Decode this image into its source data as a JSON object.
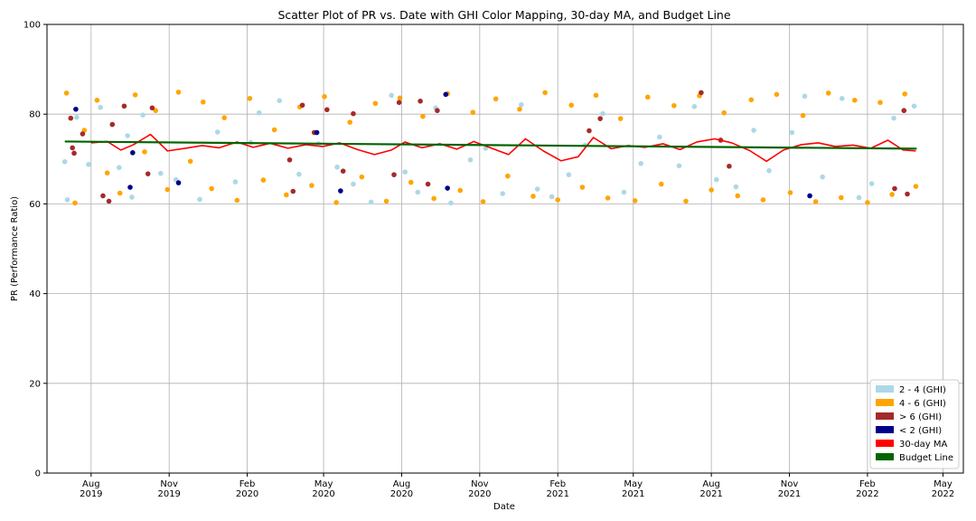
{
  "chart_data": {
    "type": "scatter",
    "title": "Scatter Plot of PR vs. Date with GHI Color Mapping, 30-day MA, and Budget Line",
    "xlabel": "Date",
    "ylabel": "PR (Performance Ratio)",
    "xlim": [
      "2019-06-10",
      "2022-05-25"
    ],
    "ylim": [
      0,
      100
    ],
    "yticks": [
      0,
      20,
      40,
      60,
      80,
      100
    ],
    "xticks": [
      {
        "date": "2019-08-01",
        "label1": "Aug",
        "label2": "2019"
      },
      {
        "date": "2019-11-01",
        "label1": "Nov",
        "label2": "2019"
      },
      {
        "date": "2020-02-01",
        "label1": "Feb",
        "label2": "2020"
      },
      {
        "date": "2020-05-01",
        "label1": "May",
        "label2": "2020"
      },
      {
        "date": "2020-08-01",
        "label1": "Aug",
        "label2": "2020"
      },
      {
        "date": "2020-11-01",
        "label1": "Nov",
        "label2": "2020"
      },
      {
        "date": "2021-02-01",
        "label1": "Feb",
        "label2": "2021"
      },
      {
        "date": "2021-05-01",
        "label1": "May",
        "label2": "2021"
      },
      {
        "date": "2021-08-01",
        "label1": "Aug",
        "label2": "2021"
      },
      {
        "date": "2021-11-01",
        "label1": "Nov",
        "label2": "2021"
      },
      {
        "date": "2022-02-01",
        "label1": "Feb",
        "label2": "2022"
      },
      {
        "date": "2022-05-01",
        "label1": "May",
        "label2": "2022"
      }
    ],
    "grid": true,
    "legend_position": "bottom-right",
    "series": [
      {
        "name": "2 - 4 (GHI)",
        "color": "#add8e6",
        "kind": "scatter",
        "points": [
          [
            "2019-07-01",
            69.4
          ],
          [
            "2019-07-04",
            60.9
          ],
          [
            "2019-07-15",
            79.3
          ],
          [
            "2019-07-29",
            68.8
          ],
          [
            "2019-08-12",
            81.5
          ],
          [
            "2019-09-03",
            68.1
          ],
          [
            "2019-09-13",
            75.2
          ],
          [
            "2019-09-18",
            61.5
          ],
          [
            "2019-10-01",
            79.8
          ],
          [
            "2019-10-22",
            66.8
          ],
          [
            "2019-11-09",
            65.4
          ],
          [
            "2019-12-07",
            61.0
          ],
          [
            "2019-12-28",
            76.0
          ],
          [
            "2020-01-18",
            64.9
          ],
          [
            "2020-02-05",
            73.7
          ],
          [
            "2020-02-15",
            80.3
          ],
          [
            "2020-03-10",
            83.0
          ],
          [
            "2020-04-02",
            66.6
          ],
          [
            "2020-04-25",
            73.4
          ],
          [
            "2020-05-17",
            68.2
          ],
          [
            "2020-06-05",
            64.4
          ],
          [
            "2020-06-26",
            60.4
          ],
          [
            "2020-07-20",
            84.2
          ],
          [
            "2020-08-05",
            67.1
          ],
          [
            "2020-08-20",
            62.6
          ],
          [
            "2020-09-10",
            81.4
          ],
          [
            "2020-09-28",
            60.2
          ],
          [
            "2020-10-21",
            69.8
          ],
          [
            "2020-11-08",
            72.4
          ],
          [
            "2020-11-28",
            62.3
          ],
          [
            "2020-12-20",
            82.1
          ],
          [
            "2021-01-08",
            63.3
          ],
          [
            "2021-01-25",
            61.6
          ],
          [
            "2021-02-14",
            66.5
          ],
          [
            "2021-03-05",
            73.1
          ],
          [
            "2021-03-26",
            80.1
          ],
          [
            "2021-04-20",
            62.6
          ],
          [
            "2021-05-10",
            69.0
          ],
          [
            "2021-06-01",
            74.9
          ],
          [
            "2021-06-24",
            68.5
          ],
          [
            "2021-07-12",
            81.7
          ],
          [
            "2021-08-07",
            65.4
          ],
          [
            "2021-08-30",
            63.8
          ],
          [
            "2021-09-20",
            76.4
          ],
          [
            "2021-10-08",
            67.4
          ],
          [
            "2021-11-04",
            75.9
          ],
          [
            "2021-11-19",
            84.0
          ],
          [
            "2021-12-10",
            66.0
          ],
          [
            "2022-01-02",
            83.5
          ],
          [
            "2022-01-22",
            61.4
          ],
          [
            "2022-02-06",
            64.5
          ],
          [
            "2022-03-04",
            79.1
          ],
          [
            "2022-03-28",
            81.8
          ]
        ]
      },
      {
        "name": "4 - 6 (GHI)",
        "color": "#ffa500",
        "kind": "scatter",
        "points": [
          [
            "2019-07-03",
            84.7
          ],
          [
            "2019-07-13",
            60.2
          ],
          [
            "2019-07-24",
            76.4
          ],
          [
            "2019-08-08",
            83.1
          ],
          [
            "2019-08-20",
            66.9
          ],
          [
            "2019-09-04",
            62.4
          ],
          [
            "2019-09-22",
            84.3
          ],
          [
            "2019-10-03",
            71.6
          ],
          [
            "2019-10-16",
            80.8
          ],
          [
            "2019-10-30",
            63.2
          ],
          [
            "2019-11-12",
            84.9
          ],
          [
            "2019-11-26",
            69.5
          ],
          [
            "2019-12-11",
            82.7
          ],
          [
            "2019-12-21",
            63.4
          ],
          [
            "2020-01-05",
            79.2
          ],
          [
            "2020-01-20",
            60.8
          ],
          [
            "2020-02-04",
            83.5
          ],
          [
            "2020-02-20",
            65.3
          ],
          [
            "2020-03-04",
            76.5
          ],
          [
            "2020-03-18",
            62.0
          ],
          [
            "2020-04-03",
            81.6
          ],
          [
            "2020-04-17",
            64.1
          ],
          [
            "2020-05-02",
            83.9
          ],
          [
            "2020-05-16",
            60.3
          ],
          [
            "2020-06-01",
            78.2
          ],
          [
            "2020-06-15",
            66.0
          ],
          [
            "2020-07-01",
            82.4
          ],
          [
            "2020-07-14",
            60.6
          ],
          [
            "2020-07-30",
            83.6
          ],
          [
            "2020-08-12",
            64.8
          ],
          [
            "2020-08-26",
            79.5
          ],
          [
            "2020-09-08",
            61.2
          ],
          [
            "2020-09-24",
            84.6
          ],
          [
            "2020-10-09",
            63.0
          ],
          [
            "2020-10-24",
            80.4
          ],
          [
            "2020-11-05",
            60.5
          ],
          [
            "2020-11-20",
            83.4
          ],
          [
            "2020-12-04",
            66.2
          ],
          [
            "2020-12-18",
            81.1
          ],
          [
            "2021-01-03",
            61.7
          ],
          [
            "2021-01-17",
            84.8
          ],
          [
            "2021-02-01",
            60.9
          ],
          [
            "2021-02-17",
            82.0
          ],
          [
            "2021-03-02",
            63.7
          ],
          [
            "2021-03-18",
            84.2
          ],
          [
            "2021-04-01",
            61.3
          ],
          [
            "2021-04-16",
            79.0
          ],
          [
            "2021-05-03",
            60.7
          ],
          [
            "2021-05-18",
            83.8
          ],
          [
            "2021-06-03",
            64.4
          ],
          [
            "2021-06-18",
            81.9
          ],
          [
            "2021-07-02",
            60.6
          ],
          [
            "2021-07-18",
            84.1
          ],
          [
            "2021-08-01",
            63.1
          ],
          [
            "2021-08-16",
            80.3
          ],
          [
            "2021-09-01",
            61.8
          ],
          [
            "2021-09-17",
            83.2
          ],
          [
            "2021-10-01",
            60.9
          ],
          [
            "2021-10-17",
            84.4
          ],
          [
            "2021-11-02",
            62.5
          ],
          [
            "2021-11-17",
            79.7
          ],
          [
            "2021-12-02",
            60.5
          ],
          [
            "2021-12-17",
            84.7
          ],
          [
            "2022-01-01",
            61.4
          ],
          [
            "2022-01-17",
            83.1
          ],
          [
            "2022-02-01",
            60.3
          ],
          [
            "2022-02-16",
            82.6
          ],
          [
            "2022-03-02",
            62.1
          ],
          [
            "2022-03-17",
            84.5
          ],
          [
            "2022-03-30",
            63.9
          ]
        ]
      },
      {
        "name": "> 6 (GHI)",
        "color": "#a52a2a",
        "kind": "scatter",
        "points": [
          [
            "2019-07-08",
            79.1
          ],
          [
            "2019-07-10",
            72.5
          ],
          [
            "2019-07-12",
            71.3
          ],
          [
            "2019-07-22",
            75.6
          ],
          [
            "2019-08-15",
            61.8
          ],
          [
            "2019-08-22",
            60.6
          ],
          [
            "2019-08-26",
            77.7
          ],
          [
            "2019-09-09",
            81.8
          ],
          [
            "2019-10-07",
            66.7
          ],
          [
            "2019-10-12",
            81.4
          ],
          [
            "2020-03-22",
            69.8
          ],
          [
            "2020-03-26",
            62.8
          ],
          [
            "2020-04-06",
            82.0
          ],
          [
            "2020-04-20",
            75.9
          ],
          [
            "2020-05-05",
            81.0
          ],
          [
            "2020-05-24",
            67.3
          ],
          [
            "2020-06-05",
            80.1
          ],
          [
            "2020-07-23",
            66.5
          ],
          [
            "2020-07-29",
            82.6
          ],
          [
            "2020-08-23",
            82.9
          ],
          [
            "2020-09-01",
            64.4
          ],
          [
            "2020-09-12",
            80.8
          ],
          [
            "2021-03-10",
            76.3
          ],
          [
            "2021-03-23",
            79.0
          ],
          [
            "2021-07-20",
            84.8
          ],
          [
            "2021-08-12",
            74.2
          ],
          [
            "2021-08-22",
            68.4
          ],
          [
            "2022-03-05",
            63.4
          ],
          [
            "2022-03-16",
            80.8
          ],
          [
            "2022-03-20",
            62.2
          ]
        ]
      },
      {
        "name": "< 2 (GHI)",
        "color": "#00008b",
        "kind": "scatter",
        "points": [
          [
            "2019-07-14",
            81.1
          ],
          [
            "2019-09-16",
            63.7
          ],
          [
            "2019-09-19",
            71.4
          ],
          [
            "2019-11-12",
            64.7
          ],
          [
            "2020-04-23",
            75.9
          ],
          [
            "2020-05-21",
            62.9
          ],
          [
            "2020-09-22",
            84.4
          ],
          [
            "2020-09-24",
            63.5
          ],
          [
            "2021-11-25",
            61.8
          ]
        ]
      },
      {
        "name": "30-day MA",
        "color": "#ff0000",
        "kind": "line",
        "points": [
          [
            "2019-08-01",
            73.6
          ],
          [
            "2019-08-20",
            73.9
          ],
          [
            "2019-09-05",
            72.0
          ],
          [
            "2019-09-20",
            73.2
          ],
          [
            "2019-10-10",
            75.5
          ],
          [
            "2019-10-30",
            71.8
          ],
          [
            "2019-11-20",
            72.4
          ],
          [
            "2019-12-10",
            73.0
          ],
          [
            "2019-12-30",
            72.5
          ],
          [
            "2020-01-20",
            73.8
          ],
          [
            "2020-02-08",
            72.6
          ],
          [
            "2020-02-28",
            73.5
          ],
          [
            "2020-03-20",
            72.4
          ],
          [
            "2020-04-10",
            73.2
          ],
          [
            "2020-04-30",
            72.8
          ],
          [
            "2020-05-20",
            73.6
          ],
          [
            "2020-06-10",
            72.1
          ],
          [
            "2020-06-30",
            71.0
          ],
          [
            "2020-07-20",
            72.0
          ],
          [
            "2020-08-05",
            73.8
          ],
          [
            "2020-08-25",
            72.5
          ],
          [
            "2020-09-15",
            73.4
          ],
          [
            "2020-10-05",
            72.2
          ],
          [
            "2020-10-25",
            73.9
          ],
          [
            "2020-11-15",
            72.4
          ],
          [
            "2020-12-05",
            71.0
          ],
          [
            "2020-12-25",
            74.5
          ],
          [
            "2021-01-15",
            71.8
          ],
          [
            "2021-02-05",
            69.6
          ],
          [
            "2021-02-25",
            70.5
          ],
          [
            "2021-03-15",
            74.8
          ],
          [
            "2021-04-05",
            72.3
          ],
          [
            "2021-04-25",
            73.0
          ],
          [
            "2021-05-15",
            72.6
          ],
          [
            "2021-06-05",
            73.4
          ],
          [
            "2021-06-25",
            72.1
          ],
          [
            "2021-07-15",
            73.8
          ],
          [
            "2021-08-05",
            74.5
          ],
          [
            "2021-08-25",
            73.6
          ],
          [
            "2021-09-15",
            71.9
          ],
          [
            "2021-10-05",
            69.5
          ],
          [
            "2021-10-25",
            72.0
          ],
          [
            "2021-11-15",
            73.2
          ],
          [
            "2021-12-05",
            73.6
          ],
          [
            "2021-12-25",
            72.8
          ],
          [
            "2022-01-15",
            73.1
          ],
          [
            "2022-02-05",
            72.4
          ],
          [
            "2022-02-25",
            74.2
          ],
          [
            "2022-03-15",
            72.0
          ],
          [
            "2022-03-30",
            71.8
          ]
        ]
      },
      {
        "name": "Budget Line",
        "color": "#006400",
        "kind": "line",
        "points": [
          [
            "2019-07-01",
            73.9
          ],
          [
            "2022-03-31",
            72.3
          ]
        ]
      }
    ]
  }
}
